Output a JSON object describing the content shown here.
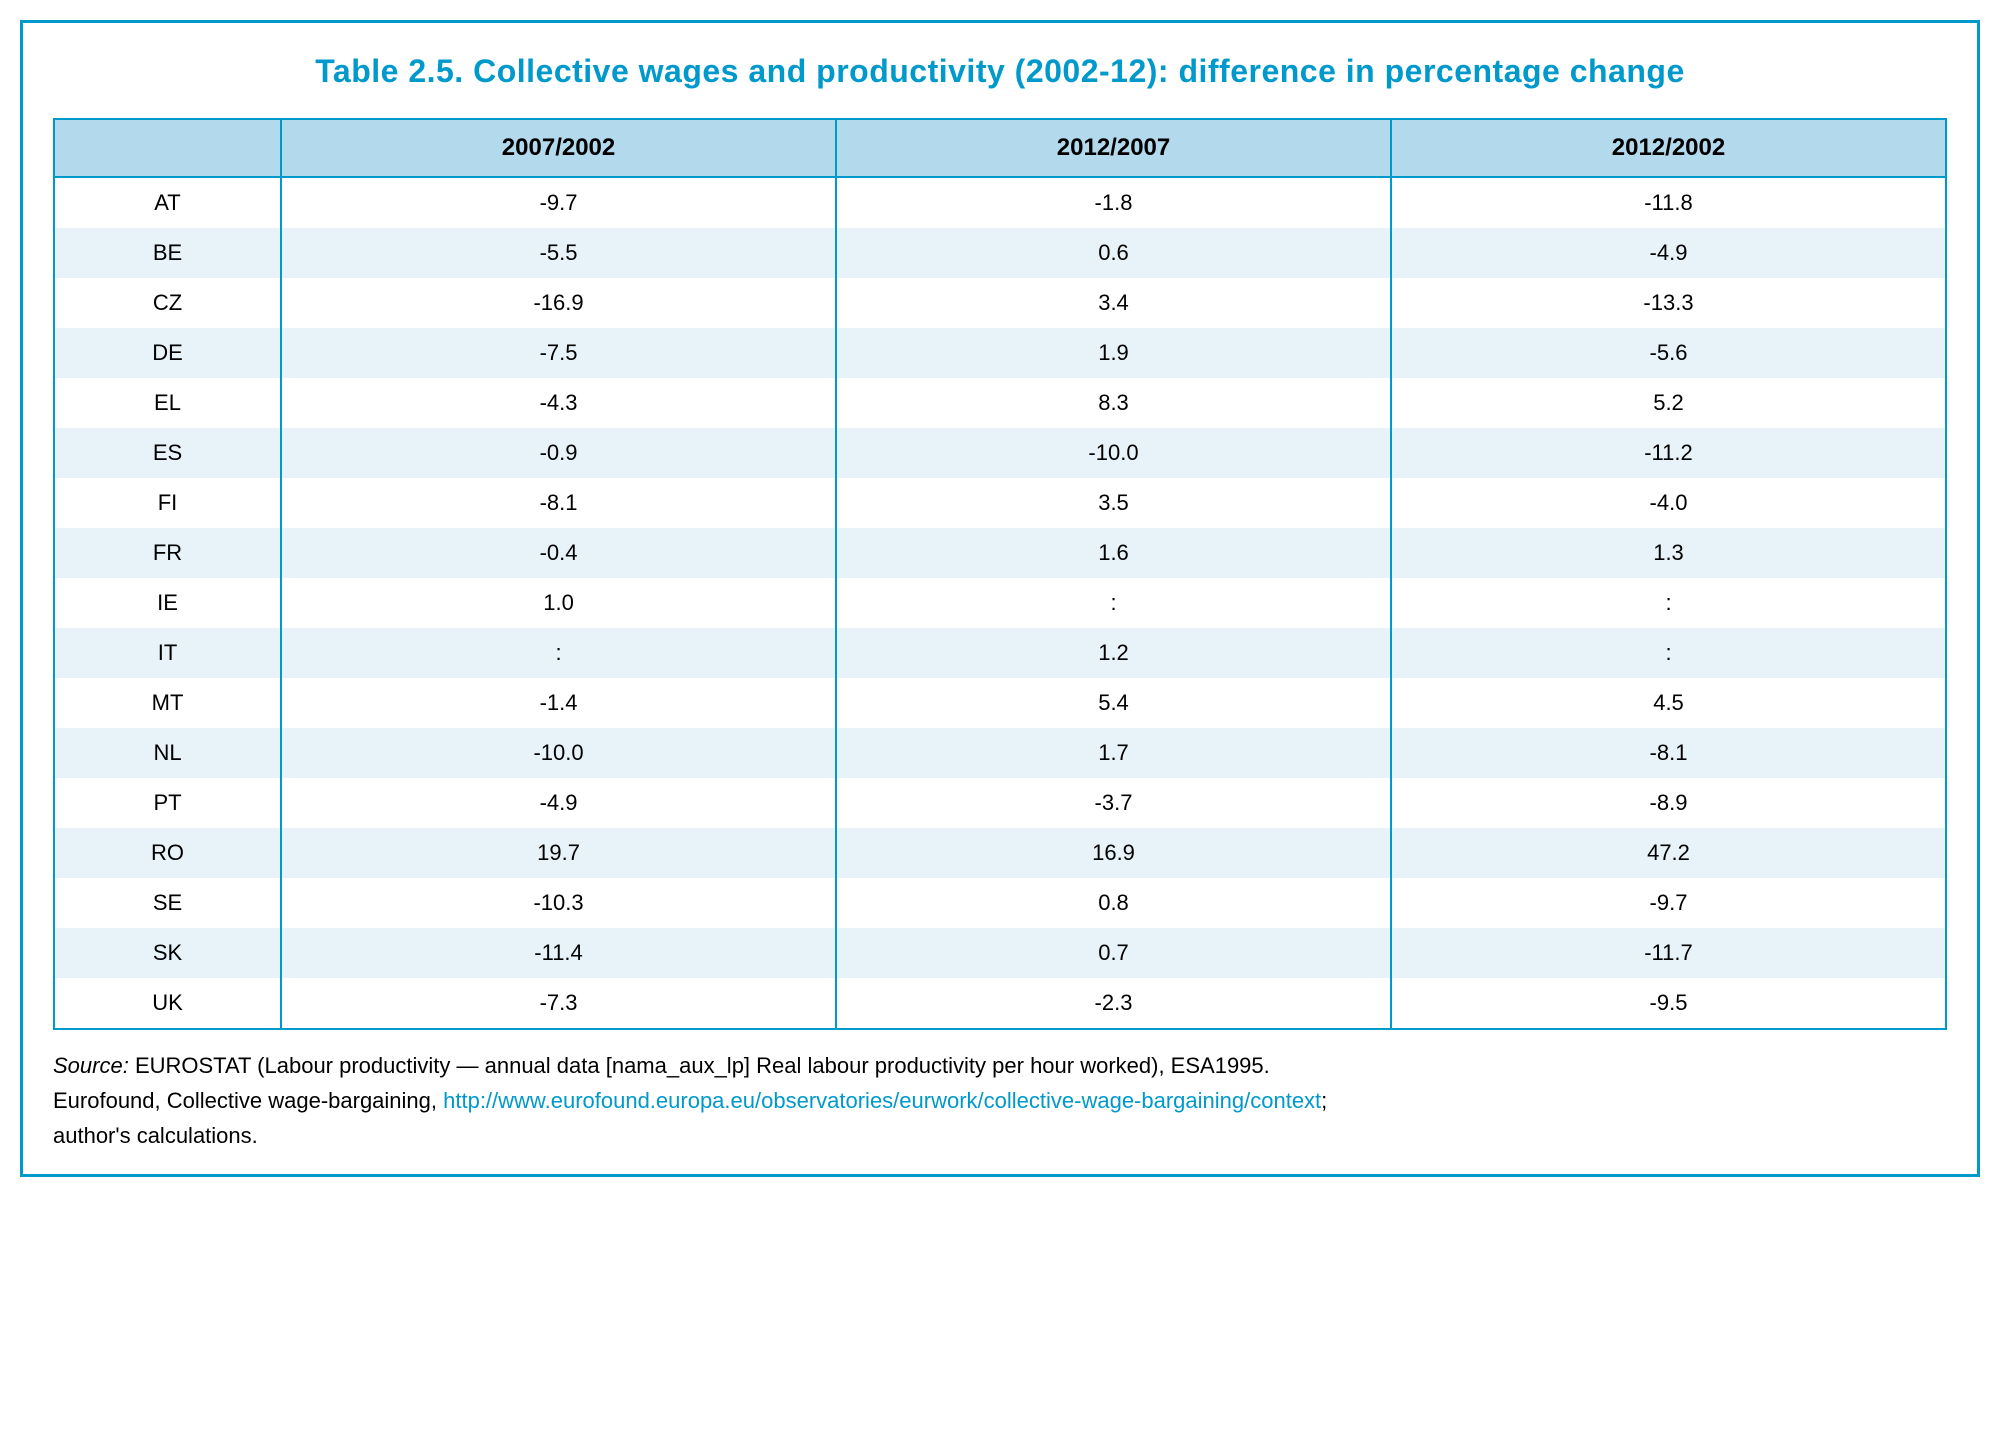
{
  "title": "Table 2.5. Collective wages and productivity (2002-12): difference in percentage change",
  "table": {
    "type": "table",
    "border_color": "#0099cc",
    "header_bg": "#b3d9ed",
    "row_odd_bg": "#ffffff",
    "row_even_bg": "#e8f2f9",
    "text_color": "#000000",
    "title_color": "#0099cc",
    "header_fontsize": 24,
    "cell_fontsize": 22,
    "title_fontsize": 32,
    "columns": [
      "",
      "2007/2002",
      "2012/2007",
      "2012/2002"
    ],
    "col_widths_pct": [
      12,
      29.3,
      29.3,
      29.3
    ],
    "rows": [
      [
        "AT",
        "-9.7",
        "-1.8",
        "-11.8"
      ],
      [
        "BE",
        "-5.5",
        "0.6",
        "-4.9"
      ],
      [
        "CZ",
        "-16.9",
        "3.4",
        "-13.3"
      ],
      [
        "DE",
        "-7.5",
        "1.9",
        "-5.6"
      ],
      [
        "EL",
        "-4.3",
        "8.3",
        "5.2"
      ],
      [
        "ES",
        "-0.9",
        "-10.0",
        "-11.2"
      ],
      [
        "FI",
        "-8.1",
        "3.5",
        "-4.0"
      ],
      [
        "FR",
        "-0.4",
        "1.6",
        "1.3"
      ],
      [
        "IE",
        "1.0",
        ":",
        ":"
      ],
      [
        "IT",
        ":",
        "1.2",
        ":"
      ],
      [
        "MT",
        "-1.4",
        "5.4",
        "4.5"
      ],
      [
        "NL",
        "-10.0",
        "1.7",
        "-8.1"
      ],
      [
        "PT",
        "-4.9",
        "-3.7",
        "-8.9"
      ],
      [
        "RO",
        "19.7",
        "16.9",
        "47.2"
      ],
      [
        "SE",
        "-10.3",
        "0.8",
        "-9.7"
      ],
      [
        "SK",
        "-11.4",
        "0.7",
        "-11.7"
      ],
      [
        "UK",
        "-7.3",
        "-2.3",
        "-9.5"
      ]
    ]
  },
  "source": {
    "label": "Source:",
    "line1_before": " EUROSTAT (Labour productivity — annual data [nama_aux_lp] Real labour productivity per hour worked), ESA1995.",
    "line2_before": "Eurofound, Collective wage-bargaining, ",
    "link_text": "http://www.eurofound.europa.eu/observatories/eurwork/collective-wage-bargaining/context",
    "line2_after": ";",
    "line3": "author's calculations.",
    "link_color": "#0099cc",
    "fontsize": 22
  }
}
